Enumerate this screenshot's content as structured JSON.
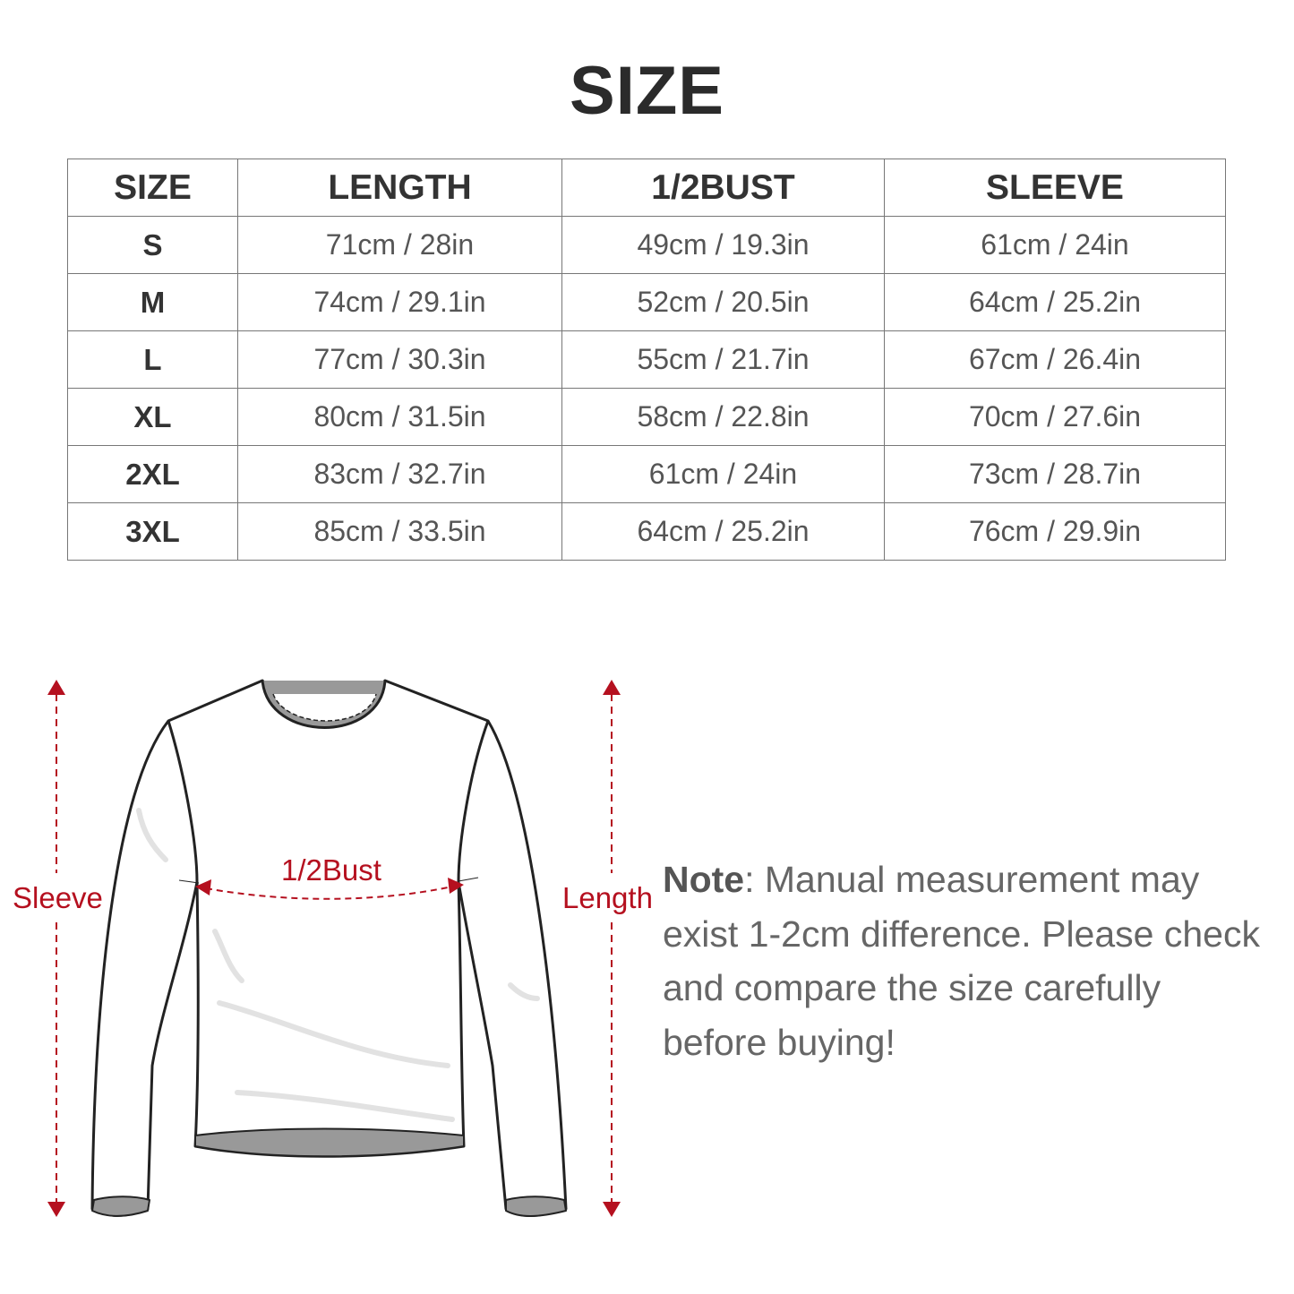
{
  "title": "SIZE",
  "table": {
    "headers": [
      "SIZE",
      "LENGTH",
      "1/2BUST",
      "SLEEVE"
    ],
    "rows": [
      [
        "S",
        "71cm / 28in",
        "49cm / 19.3in",
        "61cm / 24in"
      ],
      [
        "M",
        "74cm / 29.1in",
        "52cm / 20.5in",
        "64cm / 25.2in"
      ],
      [
        "L",
        "77cm / 30.3in",
        "55cm / 21.7in",
        "67cm / 26.4in"
      ],
      [
        "XL",
        "80cm / 31.5in",
        "58cm / 22.8in",
        "70cm / 27.6in"
      ],
      [
        "2XL",
        "83cm / 32.7in",
        "61cm / 24in",
        "73cm / 28.7in"
      ],
      [
        "3XL",
        "85cm / 33.5in",
        "64cm / 25.2in",
        "76cm / 29.9in"
      ]
    ]
  },
  "diagram": {
    "sleeve_label": "Sleeve",
    "bust_label": "1/2Bust",
    "length_label": "Length",
    "accent_color": "#b5101f"
  },
  "note": {
    "label": "Note",
    "text": ": Manual measurement may exist 1-2cm difference. Please check and compare the size carefully before buying!"
  }
}
